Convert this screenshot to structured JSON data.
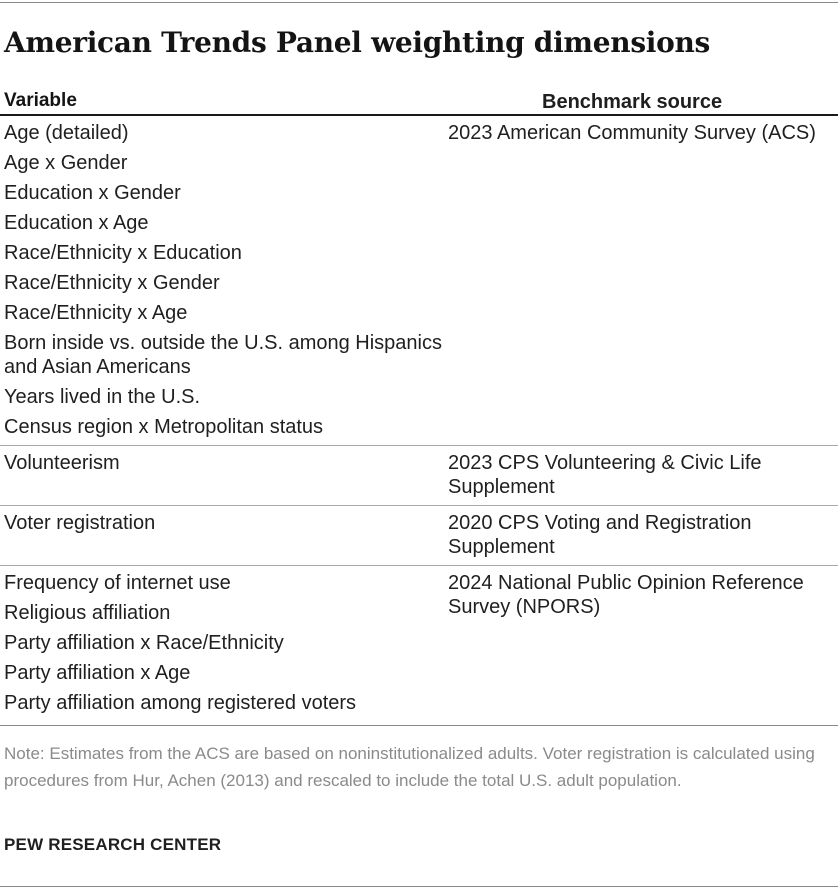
{
  "title": "American Trends Panel weighting dimensions",
  "table": {
    "headers": {
      "variable": "Variable",
      "source": "Benchmark source"
    },
    "groups": [
      {
        "variables": [
          "Age (detailed)",
          "Age x Gender",
          "Education x Gender",
          "Education x Age",
          "Race/Ethnicity x Education",
          "Race/Ethnicity x Gender",
          "Race/Ethnicity x Age",
          "Born inside vs. outside the U.S. among Hispanics and Asian Americans",
          "Years lived in the U.S.",
          "Census region x Metropolitan status"
        ],
        "source": "2023 American Community Survey (ACS)"
      },
      {
        "variables": [
          "Volunteerism"
        ],
        "source": "2023 CPS Volunteering & Civic Life Supplement"
      },
      {
        "variables": [
          "Voter registration"
        ],
        "source": "2020 CPS Voting and Registration Supplement"
      },
      {
        "variables": [
          "Frequency of internet use",
          "Religious affiliation",
          "Party affiliation x Race/Ethnicity",
          "Party affiliation x Age",
          "Party affiliation among registered voters"
        ],
        "source": "2024 National Public Opinion Reference Survey (NPORS)"
      }
    ]
  },
  "note": "Note: Estimates from the ACS are based on noninstitutionalized adults. Voter registration is calculated using procedures from Hur, Achen (2013) and rescaled to include the total U.S. adult population.",
  "credit": "PEW RESEARCH CENTER"
}
